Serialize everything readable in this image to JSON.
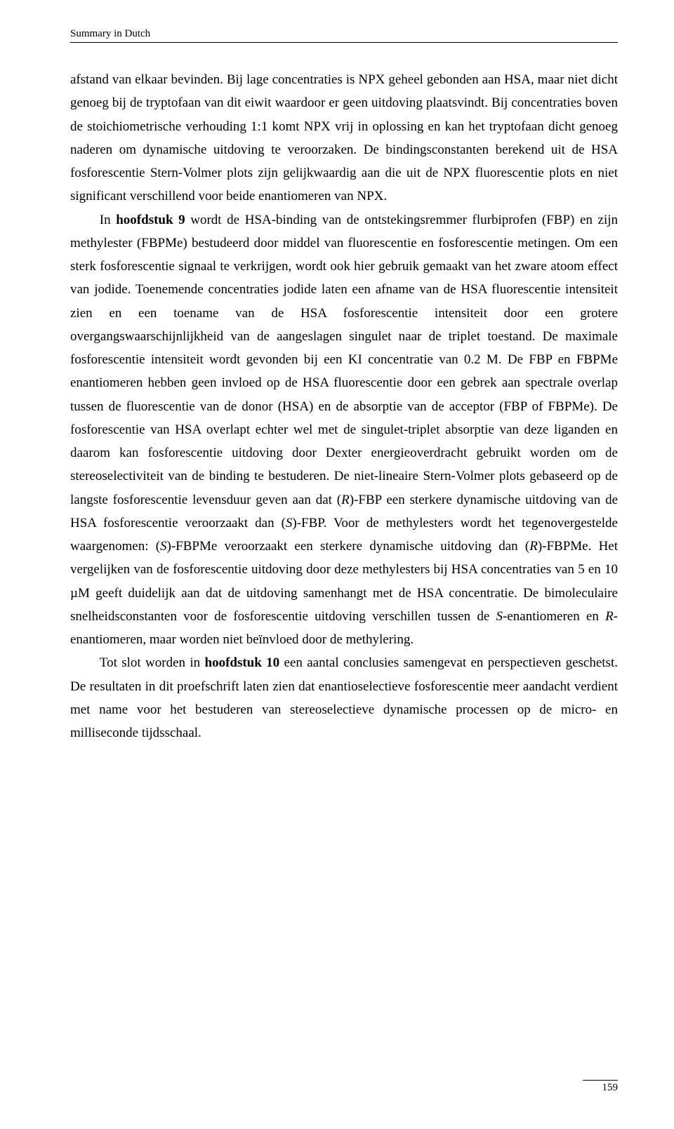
{
  "header": {
    "running_title": "Summary in Dutch"
  },
  "body": {
    "p1_part1": "afstand van elkaar bevinden. Bij lage concentraties is NPX geheel gebonden aan HSA, maar niet dicht genoeg bij de tryptofaan van dit eiwit waardoor er geen uitdoving plaatsvindt. Bij concentraties boven de stoichiometrische verhouding 1:1 komt NPX vrij in oplossing en kan het tryptofaan dicht genoeg naderen om dynamische uitdoving te veroorzaken. De bindingsconstanten berekend uit de HSA fosforescentie Stern-Volmer plots zijn gelijkwaardig aan die uit de NPX fluorescentie plots en niet significant verschillend voor beide enantiomeren van NPX.",
    "p2_lead": "In ",
    "p2_bold": "hoofdstuk 9",
    "p2_a": " wordt de HSA-binding van de ontstekingsremmer flurbiprofen (FBP) en zijn methylester (FBPMe) bestudeerd door middel van fluorescentie en fosforescentie metingen. Om een sterk fosforescentie signaal te verkrijgen, wordt ook hier gebruik gemaakt van het zware atoom effect van jodide. Toenemende concentraties jodide laten een afname van de HSA fluorescentie intensiteit zien en een toename van de HSA fosforescentie intensiteit door een grotere overgangswaarschijnlijkheid van de aangeslagen singulet naar de triplet toestand. De maximale fosforescentie intensiteit wordt gevonden bij een KI concentratie van 0.2 M. De FBP en FBPMe enantiomeren hebben geen invloed op de HSA fluorescentie door een gebrek aan spectrale overlap tussen de fluorescentie van de donor (HSA) en de absorptie van de acceptor (FBP of FBPMe). De fosforescentie van HSA overlapt echter wel met de singulet-triplet absorptie van deze liganden en daarom kan fosforescentie uitdoving door Dexter energieoverdracht gebruikt worden om de stereoselectiviteit van de binding te bestuderen. De niet-lineaire Stern-Volmer plots gebaseerd op de langste fosforescentie levensduur geven aan dat (",
    "p2_it1": "R",
    "p2_b": ")-FBP een sterkere dynamische uitdoving van de HSA fosforescentie veroorzaakt dan (",
    "p2_it2": "S",
    "p2_c": ")-FBP. Voor de methylesters wordt het tegenovergestelde waargenomen: (",
    "p2_it3": "S",
    "p2_d": ")-FBPMe veroorzaakt een sterkere dynamische uitdoving dan (",
    "p2_it4": "R",
    "p2_e": ")-FBPMe. Het vergelijken van de fosforescentie uitdoving door deze methylesters bij HSA concentraties van 5 en 10 µM geeft duidelijk aan dat de uitdoving samenhangt met de HSA concentratie. De bimoleculaire snelheidsconstanten voor de fosforescentie uitdoving verschillen tussen de ",
    "p2_it5": "S",
    "p2_f": "-enantiomeren en ",
    "p2_it6": "R",
    "p2_g": "-enantiomeren, maar worden niet beïnvloed door de methylering.",
    "p3_lead": "Tot slot worden in ",
    "p3_bold": "hoofdstuk 10",
    "p3_rest": " een aantal conclusies samengevat en perspectieven geschetst. De resultaten in dit proefschrift laten zien dat enantioselectieve fosforescentie meer aandacht verdient met name voor het bestuderen van stereoselectieve dynamische processen op de micro- en milliseconde tijdsschaal."
  },
  "footer": {
    "page_number": "159"
  }
}
